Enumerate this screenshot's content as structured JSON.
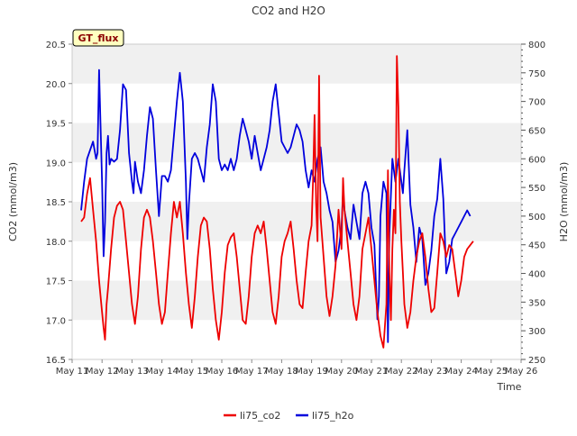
{
  "chart_data": {
    "type": "line",
    "title": "CO2 and H2O",
    "badge": "GT_flux",
    "xlabel": "Time",
    "ylabel_left": "CO2 (mmol/m3)",
    "ylabel_right": "H2O (mmol/m3)",
    "x_ticks": [
      "May 11",
      "May 12",
      "May 13",
      "May 14",
      "May 15",
      "May 16",
      "May 17",
      "May 18",
      "May 19",
      "May 20",
      "May 21",
      "May 22",
      "May 23",
      "May 24",
      "May 25",
      "May 26"
    ],
    "x_range": [
      11,
      26
    ],
    "y_left_ticks": [
      "16.5",
      "17.0",
      "17.5",
      "18.0",
      "18.5",
      "19.0",
      "19.5",
      "20.0",
      "20.5"
    ],
    "y_left_range": [
      16.5,
      20.5
    ],
    "y_right_ticks": [
      "250",
      "300",
      "350",
      "400",
      "450",
      "500",
      "550",
      "600",
      "650",
      "700",
      "750",
      "800"
    ],
    "y_right_range": [
      250,
      800
    ],
    "legend_position": "bottom-center",
    "grid": "horizontal bands",
    "colors": {
      "co2": "#ee0000",
      "h2o": "#0000dd",
      "band": "#f0f0f0",
      "badge_bg": "#ffffc0",
      "badge_text": "#8b0000"
    },
    "series": [
      {
        "name": "li75_co2",
        "axis": "left",
        "points": [
          [
            11.3,
            18.25
          ],
          [
            11.4,
            18.3
          ],
          [
            11.5,
            18.6
          ],
          [
            11.6,
            18.8
          ],
          [
            11.7,
            18.4
          ],
          [
            11.8,
            18.0
          ],
          [
            11.9,
            17.5
          ],
          [
            12.0,
            17.1
          ],
          [
            12.05,
            16.9
          ],
          [
            12.1,
            16.75
          ],
          [
            12.15,
            17.2
          ],
          [
            12.2,
            17.4
          ],
          [
            12.3,
            17.9
          ],
          [
            12.4,
            18.3
          ],
          [
            12.5,
            18.45
          ],
          [
            12.6,
            18.5
          ],
          [
            12.7,
            18.4
          ],
          [
            12.8,
            18.0
          ],
          [
            12.9,
            17.6
          ],
          [
            13.0,
            17.2
          ],
          [
            13.1,
            16.95
          ],
          [
            13.2,
            17.3
          ],
          [
            13.3,
            17.9
          ],
          [
            13.4,
            18.3
          ],
          [
            13.5,
            18.4
          ],
          [
            13.6,
            18.3
          ],
          [
            13.7,
            18.0
          ],
          [
            13.8,
            17.6
          ],
          [
            13.9,
            17.2
          ],
          [
            14.0,
            16.95
          ],
          [
            14.1,
            17.1
          ],
          [
            14.2,
            17.6
          ],
          [
            14.3,
            18.1
          ],
          [
            14.4,
            18.5
          ],
          [
            14.5,
            18.3
          ],
          [
            14.6,
            18.5
          ],
          [
            14.7,
            18.1
          ],
          [
            14.8,
            17.6
          ],
          [
            14.9,
            17.2
          ],
          [
            15.0,
            16.9
          ],
          [
            15.1,
            17.3
          ],
          [
            15.2,
            17.8
          ],
          [
            15.3,
            18.2
          ],
          [
            15.4,
            18.3
          ],
          [
            15.5,
            18.25
          ],
          [
            15.6,
            17.9
          ],
          [
            15.7,
            17.4
          ],
          [
            15.8,
            17.0
          ],
          [
            15.9,
            16.75
          ],
          [
            16.0,
            17.1
          ],
          [
            16.1,
            17.6
          ],
          [
            16.2,
            17.95
          ],
          [
            16.3,
            18.05
          ],
          [
            16.4,
            18.1
          ],
          [
            16.5,
            17.8
          ],
          [
            16.6,
            17.4
          ],
          [
            16.7,
            17.0
          ],
          [
            16.8,
            16.95
          ],
          [
            16.9,
            17.3
          ],
          [
            17.0,
            17.8
          ],
          [
            17.1,
            18.1
          ],
          [
            17.2,
            18.2
          ],
          [
            17.3,
            18.1
          ],
          [
            17.4,
            18.25
          ],
          [
            17.5,
            17.9
          ],
          [
            17.6,
            17.5
          ],
          [
            17.7,
            17.1
          ],
          [
            17.8,
            16.95
          ],
          [
            17.9,
            17.3
          ],
          [
            18.0,
            17.8
          ],
          [
            18.1,
            18.0
          ],
          [
            18.2,
            18.1
          ],
          [
            18.3,
            18.25
          ],
          [
            18.4,
            17.9
          ],
          [
            18.5,
            17.5
          ],
          [
            18.6,
            17.2
          ],
          [
            18.7,
            17.15
          ],
          [
            18.8,
            17.6
          ],
          [
            18.9,
            18.0
          ],
          [
            19.0,
            18.2
          ],
          [
            19.05,
            18.8
          ],
          [
            19.1,
            19.6
          ],
          [
            19.15,
            18.5
          ],
          [
            19.2,
            18.0
          ],
          [
            19.25,
            20.1
          ],
          [
            19.3,
            18.3
          ],
          [
            19.4,
            17.8
          ],
          [
            19.5,
            17.3
          ],
          [
            19.6,
            17.05
          ],
          [
            19.7,
            17.3
          ],
          [
            19.8,
            17.7
          ],
          [
            19.9,
            18.4
          ],
          [
            20.0,
            17.9
          ],
          [
            20.05,
            18.8
          ],
          [
            20.1,
            18.4
          ],
          [
            20.2,
            18.0
          ],
          [
            20.3,
            17.6
          ],
          [
            20.4,
            17.2
          ],
          [
            20.5,
            17.0
          ],
          [
            20.6,
            17.3
          ],
          [
            20.7,
            17.9
          ],
          [
            20.8,
            18.1
          ],
          [
            20.9,
            18.3
          ],
          [
            21.0,
            17.9
          ],
          [
            21.1,
            17.5
          ],
          [
            21.2,
            17.1
          ],
          [
            21.3,
            16.8
          ],
          [
            21.4,
            16.65
          ],
          [
            21.5,
            17.2
          ],
          [
            21.55,
            18.9
          ],
          [
            21.6,
            17.6
          ],
          [
            21.65,
            17.0
          ],
          [
            21.7,
            17.9
          ],
          [
            21.75,
            18.4
          ],
          [
            21.8,
            18.1
          ],
          [
            21.85,
            20.35
          ],
          [
            21.9,
            19.7
          ],
          [
            21.95,
            18.5
          ],
          [
            22.0,
            18.0
          ],
          [
            22.05,
            17.6
          ],
          [
            22.1,
            17.2
          ],
          [
            22.2,
            16.9
          ],
          [
            22.3,
            17.1
          ],
          [
            22.4,
            17.5
          ],
          [
            22.5,
            17.8
          ],
          [
            22.6,
            18.0
          ],
          [
            22.7,
            18.1
          ],
          [
            22.8,
            17.8
          ],
          [
            22.9,
            17.4
          ],
          [
            23.0,
            17.1
          ],
          [
            23.1,
            17.15
          ],
          [
            23.2,
            17.6
          ],
          [
            23.3,
            18.1
          ],
          [
            23.4,
            18.0
          ],
          [
            23.5,
            17.8
          ],
          [
            23.6,
            17.95
          ],
          [
            23.7,
            17.9
          ],
          [
            23.8,
            17.6
          ],
          [
            23.9,
            17.3
          ],
          [
            24.0,
            17.5
          ],
          [
            24.1,
            17.8
          ],
          [
            24.2,
            17.9
          ],
          [
            24.3,
            17.95
          ],
          [
            24.4,
            18.0
          ]
        ]
      },
      {
        "name": "li75_h2o",
        "axis": "right",
        "points": [
          [
            11.3,
            510
          ],
          [
            11.4,
            560
          ],
          [
            11.5,
            600
          ],
          [
            11.6,
            615
          ],
          [
            11.7,
            630
          ],
          [
            11.8,
            600
          ],
          [
            11.85,
            610
          ],
          [
            11.9,
            755
          ],
          [
            11.95,
            660
          ],
          [
            12.0,
            560
          ],
          [
            12.05,
            430
          ],
          [
            12.1,
            490
          ],
          [
            12.15,
            610
          ],
          [
            12.2,
            640
          ],
          [
            12.25,
            590
          ],
          [
            12.3,
            600
          ],
          [
            12.4,
            595
          ],
          [
            12.5,
            600
          ],
          [
            12.6,
            650
          ],
          [
            12.7,
            730
          ],
          [
            12.8,
            720
          ],
          [
            12.9,
            610
          ],
          [
            13.0,
            560
          ],
          [
            13.05,
            540
          ],
          [
            13.1,
            595
          ],
          [
            13.2,
            560
          ],
          [
            13.3,
            540
          ],
          [
            13.4,
            580
          ],
          [
            13.5,
            640
          ],
          [
            13.6,
            690
          ],
          [
            13.7,
            670
          ],
          [
            13.8,
            580
          ],
          [
            13.9,
            500
          ],
          [
            14.0,
            570
          ],
          [
            14.1,
            570
          ],
          [
            14.2,
            560
          ],
          [
            14.3,
            580
          ],
          [
            14.4,
            640
          ],
          [
            14.5,
            700
          ],
          [
            14.6,
            750
          ],
          [
            14.7,
            700
          ],
          [
            14.8,
            560
          ],
          [
            14.85,
            460
          ],
          [
            14.9,
            520
          ],
          [
            15.0,
            600
          ],
          [
            15.1,
            610
          ],
          [
            15.2,
            600
          ],
          [
            15.3,
            580
          ],
          [
            15.4,
            560
          ],
          [
            15.5,
            620
          ],
          [
            15.6,
            660
          ],
          [
            15.7,
            730
          ],
          [
            15.8,
            700
          ],
          [
            15.9,
            600
          ],
          [
            16.0,
            580
          ],
          [
            16.1,
            590
          ],
          [
            16.2,
            580
          ],
          [
            16.3,
            600
          ],
          [
            16.4,
            580
          ],
          [
            16.5,
            600
          ],
          [
            16.6,
            640
          ],
          [
            16.7,
            670
          ],
          [
            16.8,
            650
          ],
          [
            16.9,
            630
          ],
          [
            17.0,
            600
          ],
          [
            17.1,
            640
          ],
          [
            17.2,
            610
          ],
          [
            17.3,
            580
          ],
          [
            17.4,
            600
          ],
          [
            17.5,
            620
          ],
          [
            17.6,
            650
          ],
          [
            17.7,
            700
          ],
          [
            17.8,
            730
          ],
          [
            17.9,
            680
          ],
          [
            18.0,
            630
          ],
          [
            18.1,
            620
          ],
          [
            18.2,
            610
          ],
          [
            18.3,
            620
          ],
          [
            18.4,
            640
          ],
          [
            18.5,
            660
          ],
          [
            18.6,
            650
          ],
          [
            18.7,
            630
          ],
          [
            18.8,
            580
          ],
          [
            18.9,
            550
          ],
          [
            19.0,
            580
          ],
          [
            19.1,
            560
          ],
          [
            19.2,
            600
          ],
          [
            19.3,
            620
          ],
          [
            19.4,
            560
          ],
          [
            19.5,
            540
          ],
          [
            19.6,
            510
          ],
          [
            19.7,
            490
          ],
          [
            19.8,
            420
          ],
          [
            19.9,
            440
          ],
          [
            20.0,
            480
          ],
          [
            20.05,
            540
          ],
          [
            20.1,
            510
          ],
          [
            20.2,
            480
          ],
          [
            20.3,
            460
          ],
          [
            20.4,
            520
          ],
          [
            20.5,
            490
          ],
          [
            20.6,
            460
          ],
          [
            20.7,
            540
          ],
          [
            20.8,
            560
          ],
          [
            20.9,
            540
          ],
          [
            21.0,
            480
          ],
          [
            21.1,
            450
          ],
          [
            21.2,
            320
          ],
          [
            21.25,
            360
          ],
          [
            21.3,
            500
          ],
          [
            21.4,
            560
          ],
          [
            21.5,
            540
          ],
          [
            21.55,
            280
          ],
          [
            21.6,
            470
          ],
          [
            21.7,
            600
          ],
          [
            21.8,
            560
          ],
          [
            21.9,
            600
          ],
          [
            22.0,
            560
          ],
          [
            22.05,
            540
          ],
          [
            22.1,
            580
          ],
          [
            22.2,
            650
          ],
          [
            22.3,
            520
          ],
          [
            22.4,
            480
          ],
          [
            22.5,
            420
          ],
          [
            22.6,
            480
          ],
          [
            22.7,
            460
          ],
          [
            22.8,
            380
          ],
          [
            22.9,
            400
          ],
          [
            23.0,
            440
          ],
          [
            23.1,
            500
          ],
          [
            23.2,
            530
          ],
          [
            23.3,
            600
          ],
          [
            23.4,
            530
          ],
          [
            23.5,
            400
          ],
          [
            23.6,
            420
          ],
          [
            23.7,
            460
          ],
          [
            23.8,
            470
          ],
          [
            23.9,
            480
          ],
          [
            24.0,
            490
          ],
          [
            24.1,
            500
          ],
          [
            24.2,
            510
          ],
          [
            24.3,
            500
          ]
        ]
      }
    ]
  }
}
